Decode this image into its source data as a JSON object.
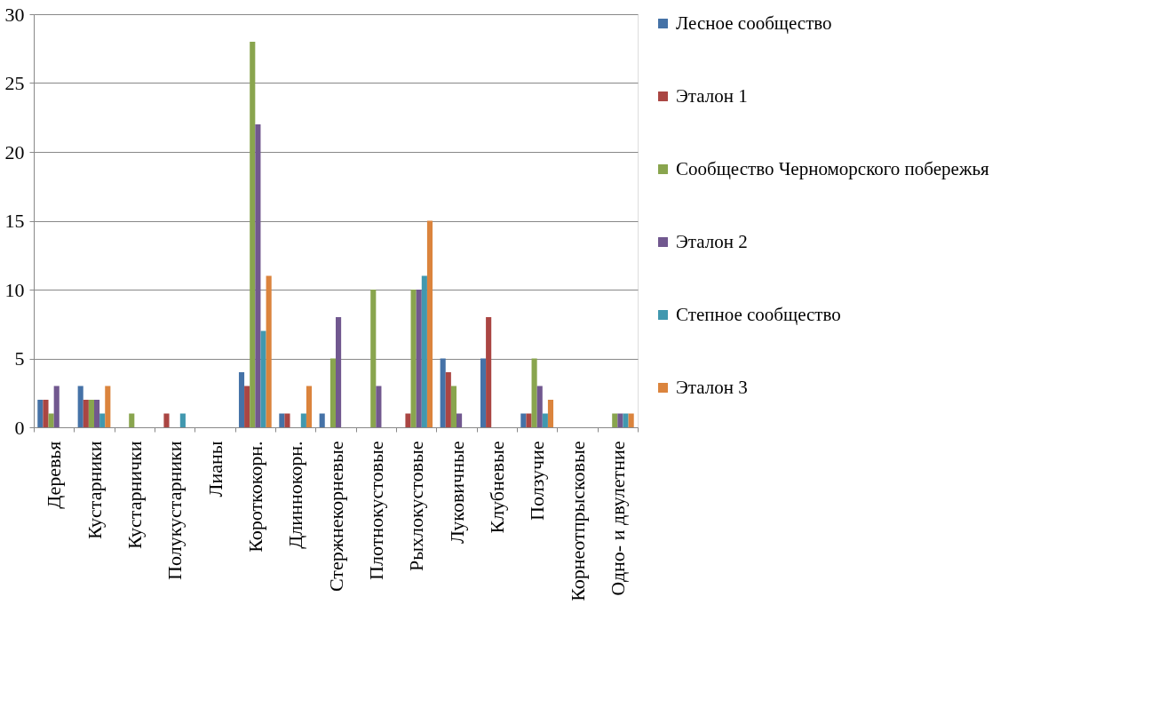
{
  "chart_data": {
    "type": "bar",
    "categories": [
      "Деревья",
      "Кустарники",
      "Кустарнички",
      "Полукустарники",
      "Лианы",
      "Короткокорн.",
      "Длиннокорн.",
      "Стержнекорневые",
      "Плотнокустовые",
      "Рыхлокустовые",
      "Луковичные",
      "Клубневые",
      "Ползучие",
      "Корнеотпрысковые",
      "Одно- и двулетние"
    ],
    "series": [
      {
        "name": "Лесное сообщество",
        "color": "#4572a7",
        "values": [
          2,
          3,
          0,
          0,
          0,
          4,
          1,
          1,
          0,
          0,
          5,
          5,
          1,
          0,
          0
        ]
      },
      {
        "name": "Эталон 1",
        "color": "#aa4643",
        "values": [
          2,
          2,
          0,
          1,
          0,
          3,
          1,
          0,
          0,
          1,
          4,
          8,
          1,
          0,
          0
        ]
      },
      {
        "name": "Сообщество Черноморского побережья",
        "color": "#89a54e",
        "values": [
          1,
          2,
          1,
          0,
          0,
          28,
          0,
          5,
          10,
          10,
          3,
          0,
          5,
          0,
          1
        ]
      },
      {
        "name": "Эталон 2",
        "color": "#71588f",
        "values": [
          3,
          2,
          0,
          0,
          0,
          22,
          0,
          8,
          3,
          10,
          1,
          0,
          3,
          0,
          1
        ]
      },
      {
        "name": "Степное сообщество",
        "color": "#4198af",
        "values": [
          0,
          1,
          0,
          1,
          0,
          7,
          1,
          0,
          0,
          11,
          0,
          0,
          1,
          0,
          1
        ]
      },
      {
        "name": "Эталон 3",
        "color": "#db843d",
        "values": [
          0,
          3,
          0,
          0,
          0,
          11,
          3,
          0,
          0,
          15,
          0,
          0,
          2,
          0,
          1
        ]
      }
    ],
    "ylim": [
      0,
      30
    ],
    "yticks": [
      0,
      5,
      10,
      15,
      20,
      25,
      30
    ],
    "grid": "y",
    "legend": "right"
  }
}
